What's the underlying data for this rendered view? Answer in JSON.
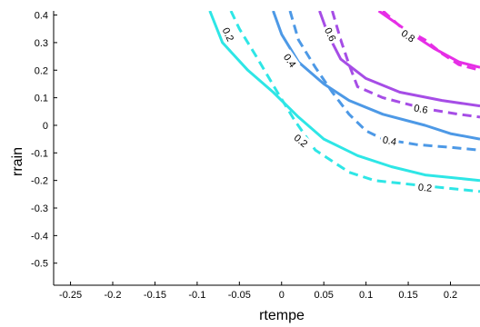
{
  "chart_data": {
    "type": "line",
    "title": "",
    "xlabel": "rtempe",
    "ylabel": "rrain",
    "xlim": [
      -0.27,
      0.235
    ],
    "ylim": [
      -0.58,
      0.415
    ],
    "x_ticks": [
      -0.25,
      -0.2,
      -0.15,
      -0.1,
      -0.05,
      0,
      0.05,
      0.1,
      0.15,
      0.2
    ],
    "x_tick_labels": [
      "-0.25",
      "-0.2",
      "-0.15",
      "-0.1",
      "-0.05",
      "0",
      "0.05",
      "0.1",
      "0.15",
      "0.2"
    ],
    "y_ticks": [
      0.4,
      0.3,
      0.2,
      0.1,
      0,
      -0.1,
      -0.2,
      -0.3,
      -0.4,
      -0.5
    ],
    "y_tick_labels": [
      "0.4",
      "0.3",
      "0.2",
      "0.1",
      "0",
      "-0.1",
      "-0.2",
      "-0.3",
      "-0.4",
      "-0.5"
    ],
    "grid": false,
    "series": [
      {
        "level": "0.2",
        "style": "solid",
        "color": "#2ee6e6",
        "points": [
          [
            -0.085,
            0.415
          ],
          [
            -0.07,
            0.3
          ],
          [
            -0.04,
            0.2
          ],
          [
            -0.01,
            0.12
          ],
          [
            0.02,
            0.03
          ],
          [
            0.05,
            -0.05
          ],
          [
            0.09,
            -0.11
          ],
          [
            0.13,
            -0.15
          ],
          [
            0.17,
            -0.18
          ],
          [
            0.235,
            -0.2
          ]
        ]
      },
      {
        "level": "0.2",
        "style": "dashed",
        "color": "#2ee6e6",
        "points": [
          [
            -0.06,
            0.415
          ],
          [
            -0.05,
            0.35
          ],
          [
            -0.03,
            0.25
          ],
          [
            -0.005,
            0.12
          ],
          [
            0.015,
            0.02
          ],
          [
            0.04,
            -0.09
          ],
          [
            0.08,
            -0.17
          ],
          [
            0.11,
            -0.2
          ],
          [
            0.17,
            -0.22
          ],
          [
            0.235,
            -0.24
          ]
        ]
      },
      {
        "level": "0.4",
        "style": "solid",
        "color": "#4d99e6",
        "points": [
          [
            -0.01,
            0.415
          ],
          [
            0,
            0.33
          ],
          [
            0.02,
            0.23
          ],
          [
            0.05,
            0.15
          ],
          [
            0.08,
            0.09
          ],
          [
            0.12,
            0.04
          ],
          [
            0.17,
            0.0
          ],
          [
            0.2,
            -0.03
          ],
          [
            0.235,
            -0.05
          ]
        ]
      },
      {
        "level": "0.4",
        "style": "dashed",
        "color": "#4d99e6",
        "points": [
          [
            0.01,
            0.415
          ],
          [
            0.02,
            0.31
          ],
          [
            0.04,
            0.21
          ],
          [
            0.06,
            0.12
          ],
          [
            0.08,
            0.04
          ],
          [
            0.1,
            -0.02
          ],
          [
            0.12,
            -0.05
          ],
          [
            0.16,
            -0.07
          ],
          [
            0.2,
            -0.08
          ],
          [
            0.235,
            -0.09
          ]
        ]
      },
      {
        "level": "0.6",
        "style": "solid",
        "color": "#a64de6",
        "points": [
          [
            0.045,
            0.415
          ],
          [
            0.055,
            0.33
          ],
          [
            0.07,
            0.24
          ],
          [
            0.1,
            0.17
          ],
          [
            0.14,
            0.12
          ],
          [
            0.19,
            0.09
          ],
          [
            0.235,
            0.07
          ]
        ]
      },
      {
        "level": "0.6",
        "style": "dashed",
        "color": "#a64de6",
        "points": [
          [
            0.06,
            0.415
          ],
          [
            0.07,
            0.31
          ],
          [
            0.08,
            0.22
          ],
          [
            0.09,
            0.14
          ],
          [
            0.12,
            0.1
          ],
          [
            0.17,
            0.06
          ],
          [
            0.21,
            0.04
          ],
          [
            0.235,
            0.03
          ]
        ]
      },
      {
        "level": "0.8",
        "style": "solid",
        "color": "#e62ee6",
        "points": [
          [
            0.115,
            0.415
          ],
          [
            0.15,
            0.34
          ],
          [
            0.18,
            0.28
          ],
          [
            0.21,
            0.23
          ],
          [
            0.235,
            0.21
          ]
        ]
      },
      {
        "level": "0.8",
        "style": "dashed",
        "color": "#e62ee6",
        "points": [
          [
            0.12,
            0.415
          ],
          [
            0.14,
            0.36
          ],
          [
            0.17,
            0.31
          ],
          [
            0.19,
            0.26
          ],
          [
            0.21,
            0.22
          ],
          [
            0.235,
            0.2
          ]
        ]
      }
    ],
    "labels": [
      {
        "text": "0.2",
        "x": -0.063,
        "y": 0.33,
        "angle": 65
      },
      {
        "text": "0.2",
        "x": 0.023,
        "y": -0.055,
        "angle": 40
      },
      {
        "text": "0.2",
        "x": 0.17,
        "y": -0.225,
        "angle": 5
      },
      {
        "text": "0.4",
        "x": 0.01,
        "y": 0.235,
        "angle": 55
      },
      {
        "text": "0.4",
        "x": 0.128,
        "y": -0.055,
        "angle": 10
      },
      {
        "text": "0.6",
        "x": 0.058,
        "y": 0.33,
        "angle": 65
      },
      {
        "text": "0.6",
        "x": 0.165,
        "y": 0.06,
        "angle": 10
      },
      {
        "text": "0.8",
        "x": 0.15,
        "y": 0.325,
        "angle": 35
      }
    ]
  }
}
